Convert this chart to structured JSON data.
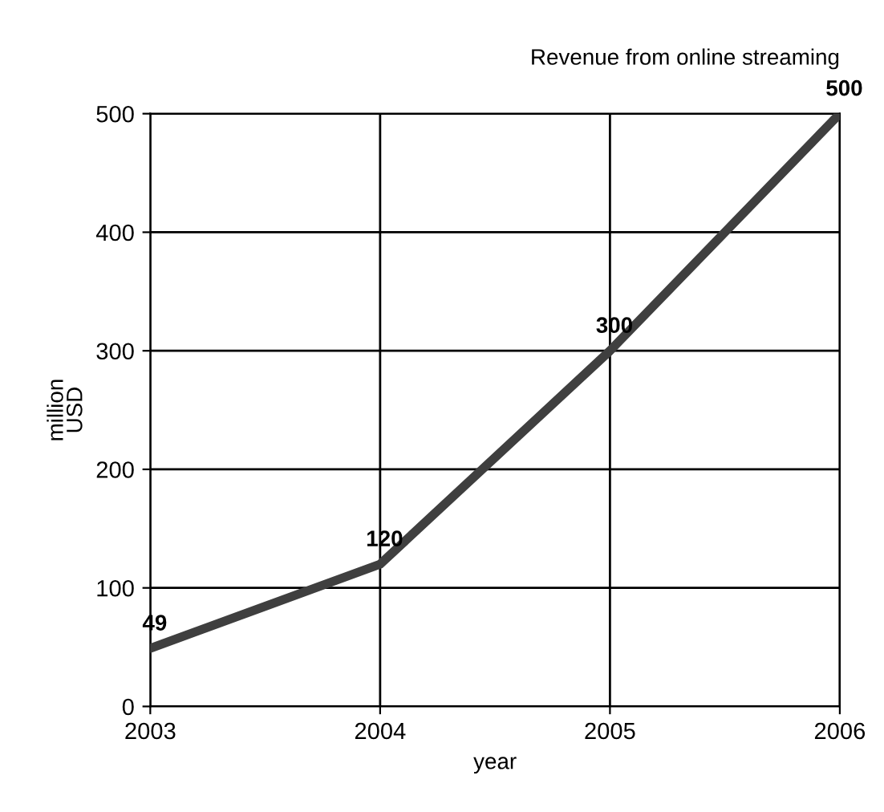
{
  "chart_data": {
    "type": "line",
    "title": "Revenue from online streaming",
    "xlabel": "year",
    "ylabel": "million\nUSD",
    "x": [
      2003,
      2004,
      2005,
      2006
    ],
    "series": [
      {
        "color": "#3f3f3f",
        "values": [
          49,
          120,
          300,
          500
        ]
      }
    ],
    "xlim": [
      2003,
      2006
    ],
    "xticks": [
      2003,
      2004,
      2005,
      2006
    ],
    "ylim": [
      0,
      500
    ],
    "yticks": [
      0,
      100,
      200,
      300,
      400,
      500
    ],
    "grid": true,
    "data_labels": true,
    "marker": "none",
    "line_style": "solid",
    "legend": false
  }
}
